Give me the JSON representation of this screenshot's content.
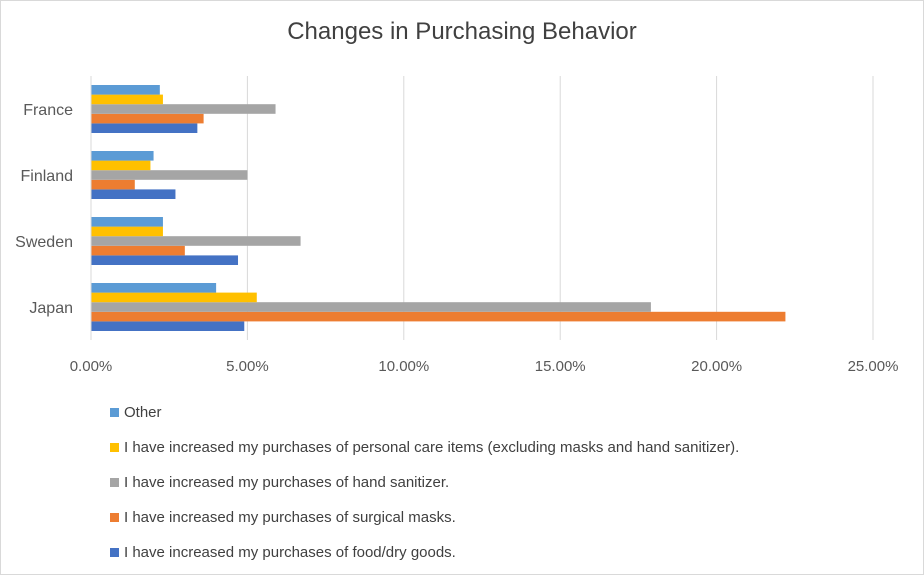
{
  "chart_data": {
    "type": "bar",
    "orientation": "horizontal",
    "title": "Changes in Purchasing Behavior",
    "xlabel": "",
    "ylabel": "",
    "xlim": [
      0,
      0.25
    ],
    "x_ticks": [
      "0.00%",
      "5.00%",
      "10.00%",
      "15.00%",
      "20.00%",
      "25.00%"
    ],
    "grid": true,
    "legend_position": "bottom",
    "categories": [
      "Japan",
      "Sweden",
      "Finland",
      "France"
    ],
    "series": [
      {
        "name": "I have increased my purchases of food/dry goods.",
        "color": "#4472c4",
        "values": [
          0.049,
          0.047,
          0.027,
          0.034
        ]
      },
      {
        "name": "I have increased my purchases of surgical masks.",
        "color": "#ed7d31",
        "values": [
          0.222,
          0.03,
          0.014,
          0.036
        ]
      },
      {
        "name": "I have increased my purchases of hand sanitizer.",
        "color": "#a5a5a5",
        "values": [
          0.179,
          0.067,
          0.05,
          0.059
        ]
      },
      {
        "name": "I have increased my purchases of personal care items (excluding masks and hand sanitizer).",
        "color": "#ffc000",
        "values": [
          0.053,
          0.023,
          0.019,
          0.023
        ]
      },
      {
        "name": "Other",
        "color": "#5b9bd5",
        "values": [
          0.04,
          0.023,
          0.02,
          0.022
        ]
      }
    ],
    "legend_order": [
      4,
      3,
      2,
      1,
      0
    ]
  }
}
